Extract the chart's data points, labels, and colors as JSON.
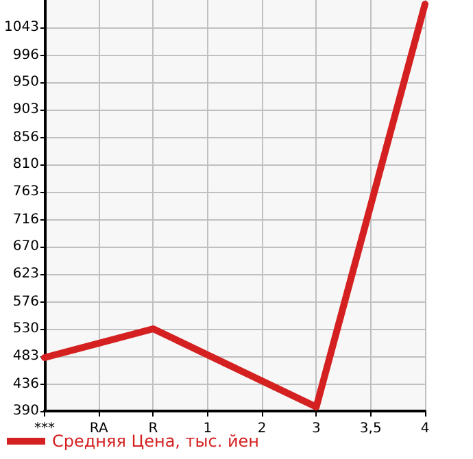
{
  "chart_data": {
    "type": "line",
    "categories": [
      "***",
      "RA",
      "R",
      "1",
      "2",
      "3",
      "3,5",
      "4"
    ],
    "series": [
      {
        "name": "Средняя Цена, тыс. йен",
        "color": "#d42020",
        "values": [
          481,
          null,
          530,
          null,
          null,
          397,
          null,
          1083
        ]
      }
    ],
    "ylim": [
      390,
      1090
    ],
    "yticks": [
      390,
      436,
      483,
      530,
      576,
      623,
      670,
      716,
      763,
      810,
      856,
      903,
      950,
      996,
      1043
    ],
    "grid": true,
    "legend": "bottom left",
    "marker": "none",
    "line_style": "solid"
  }
}
